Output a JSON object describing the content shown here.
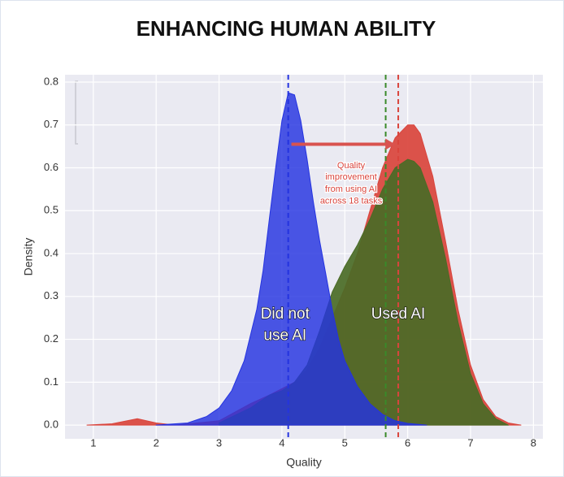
{
  "chart_data": {
    "type": "density",
    "title": "ENHANCING HUMAN ABILITY",
    "xlabel": "Quality",
    "ylabel": "Density",
    "xlim": [
      0.55,
      8.15
    ],
    "ylim": [
      -0.032,
      0.817
    ],
    "xticks": [
      1,
      2,
      3,
      4,
      5,
      6,
      7,
      8
    ],
    "yticks": [
      {
        "value": 0,
        "label": "0.0"
      },
      0.1,
      0.2,
      0.3,
      0.4,
      0.5,
      0.6,
      0.7,
      0.8
    ],
    "grid": true,
    "series": [
      {
        "color": "#d9443c",
        "x": [
          0.9,
          1.3,
          1.7,
          2.0,
          2.3,
          3.0,
          3.5,
          3.8,
          4.0,
          4.2,
          4.4,
          4.6,
          4.8,
          5.0,
          5.2,
          5.4,
          5.6,
          5.8,
          6.0,
          6.1,
          6.2,
          6.4,
          6.6,
          6.8,
          7.0,
          7.2,
          7.4,
          7.6,
          7.8
        ],
        "values": [
          0,
          0.003,
          0.015,
          0.005,
          0,
          0.01,
          0.05,
          0.07,
          0.085,
          0.1,
          0.13,
          0.18,
          0.25,
          0.32,
          0.4,
          0.5,
          0.6,
          0.67,
          0.7,
          0.7,
          0.68,
          0.58,
          0.43,
          0.27,
          0.14,
          0.06,
          0.02,
          0.005,
          0
        ]
      },
      {
        "color": "#4a6b26",
        "x": [
          3.0,
          3.5,
          3.8,
          4.0,
          4.2,
          4.4,
          4.6,
          4.8,
          5.0,
          5.2,
          5.4,
          5.6,
          5.8,
          6.0,
          6.1,
          6.2,
          6.4,
          6.6,
          6.8,
          7.0,
          7.2,
          7.4,
          7.6
        ],
        "values": [
          0.005,
          0.04,
          0.07,
          0.08,
          0.1,
          0.14,
          0.22,
          0.31,
          0.37,
          0.42,
          0.48,
          0.55,
          0.6,
          0.62,
          0.615,
          0.6,
          0.52,
          0.39,
          0.24,
          0.12,
          0.05,
          0.015,
          0
        ]
      },
      {
        "color": "#2433e0",
        "x": [
          2.0,
          2.5,
          2.8,
          3.0,
          3.2,
          3.4,
          3.6,
          3.7,
          3.8,
          3.9,
          4.0,
          4.1,
          4.2,
          4.3,
          4.4,
          4.5,
          4.6,
          4.7,
          4.8,
          4.9,
          5.0,
          5.2,
          5.4,
          5.6,
          5.8,
          6.0,
          6.3
        ],
        "values": [
          0,
          0.005,
          0.02,
          0.04,
          0.08,
          0.15,
          0.27,
          0.36,
          0.48,
          0.6,
          0.71,
          0.775,
          0.77,
          0.71,
          0.62,
          0.52,
          0.43,
          0.35,
          0.27,
          0.2,
          0.15,
          0.09,
          0.05,
          0.025,
          0.01,
          0.004,
          0
        ]
      }
    ],
    "vlines": [
      {
        "x": 4.1,
        "color": "#2433e0"
      },
      {
        "x": 5.65,
        "color": "#3a8a2a"
      },
      {
        "x": 5.85,
        "color": "#d9443c"
      }
    ],
    "arrow": {
      "x": [
        4.15,
        5.8
      ],
      "y": 0.655,
      "color": "#d9534f"
    },
    "annotations": [
      {
        "lines": [
          "Quality",
          "improvement",
          "from using AI",
          "across 18 tasks"
        ],
        "x": 5.1,
        "y": [
          0.605,
          0.578,
          0.55,
          0.522
        ],
        "color": "#d9443c",
        "size": 11
      },
      {
        "lines": [
          "Did not",
          "use AI"
        ],
        "x": 4.05,
        "y": [
          0.258,
          0.208
        ],
        "color": "#ffffff",
        "size": 19
      },
      {
        "lines": [
          "Used AI"
        ],
        "x": 5.85,
        "y": [
          0.258
        ],
        "color": "#ffffff",
        "size": 19
      }
    ]
  }
}
